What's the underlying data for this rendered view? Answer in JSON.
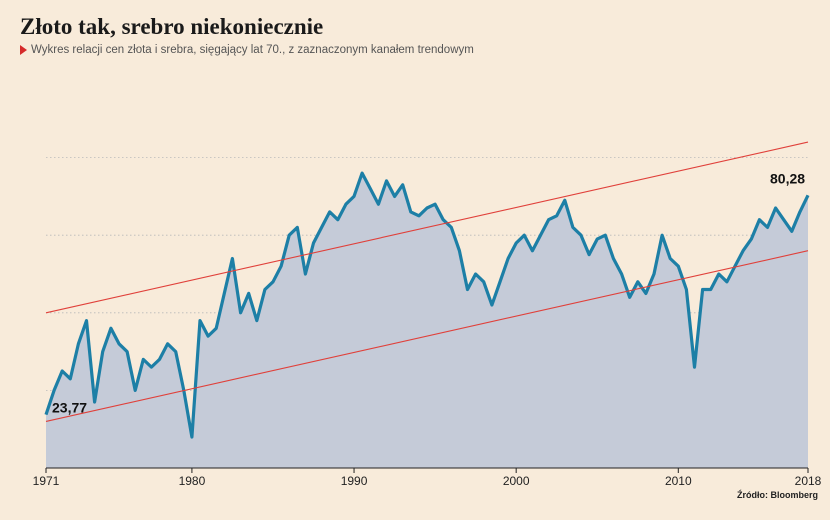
{
  "title": "Złoto tak, srebro niekoniecznie",
  "subtitle": "Wykres relacji cen złota i srebra, sięgający lat 70., z zaznaczonym kanałem trendowym",
  "source": "Źródło: Bloomberg",
  "colors": {
    "background": "#f8ebda",
    "line": "#1d7fa6",
    "area": "#c5cbd8",
    "trend": "#e0403a",
    "grid": "#b9b9b9"
  },
  "chart_data": {
    "type": "area",
    "title": "Złoto tak, srebro niekoniecznie",
    "subtitle": "Wykres relacji cen złota i srebra, sięgający lat 70., z zaznaczonym kanałem trendowym",
    "xlabel": "",
    "ylabel": "",
    "xlim": [
      1971,
      2018
    ],
    "ylim": [
      10,
      110
    ],
    "x_ticks": [
      "1971",
      "1980",
      "1990",
      "2000",
      "2010",
      "2018"
    ],
    "x_tick_values": [
      1971,
      1980,
      1990,
      2000,
      2010,
      2018
    ],
    "grid": true,
    "series": [
      {
        "x": [
          1971.0,
          1971.5,
          1972.0,
          1972.5,
          1973.0,
          1973.5,
          1974.0,
          1974.5,
          1975.0,
          1975.5,
          1976.0,
          1976.5,
          1977.0,
          1977.5,
          1978.0,
          1978.5,
          1979.0,
          1979.5,
          1980.0,
          1980.5,
          1981.0,
          1981.5,
          1982.0,
          1982.5,
          1983.0,
          1983.5,
          1984.0,
          1984.5,
          1985.0,
          1985.5,
          1986.0,
          1986.5,
          1987.0,
          1987.5,
          1988.0,
          1988.5,
          1989.0,
          1989.5,
          1990.0,
          1990.5,
          1991.0,
          1991.5,
          1992.0,
          1992.5,
          1993.0,
          1993.5,
          1994.0,
          1994.5,
          1995.0,
          1995.5,
          1996.0,
          1996.5,
          1997.0,
          1997.5,
          1998.0,
          1998.5,
          1999.0,
          1999.5,
          2000.0,
          2000.5,
          2001.0,
          2001.5,
          2002.0,
          2002.5,
          2003.0,
          2003.5,
          2004.0,
          2004.5,
          2005.0,
          2005.5,
          2006.0,
          2006.5,
          2007.0,
          2007.5,
          2008.0,
          2008.5,
          2009.0,
          2009.5,
          2010.0,
          2010.5,
          2011.0,
          2011.5,
          2012.0,
          2012.5,
          2013.0,
          2013.5,
          2014.0,
          2014.5,
          2015.0,
          2015.5,
          2016.0,
          2016.5,
          2017.0,
          2017.5,
          2018.0
        ],
        "values": [
          23.77,
          30,
          35,
          33,
          42,
          48,
          27,
          40,
          46,
          42,
          40,
          30,
          38,
          36,
          38,
          42,
          40,
          30,
          18,
          48,
          44,
          46,
          55,
          64,
          50,
          55,
          48,
          56,
          58,
          62,
          70,
          72,
          60,
          68,
          72,
          76,
          74,
          78,
          80,
          86,
          82,
          78,
          84,
          80,
          83,
          76,
          75,
          77,
          78,
          74,
          72,
          66,
          56,
          60,
          58,
          52,
          58,
          64,
          68,
          70,
          66,
          70,
          74,
          75,
          79,
          72,
          70,
          65,
          69,
          70,
          64,
          60,
          54,
          58,
          55,
          60,
          70,
          64,
          62,
          56,
          36,
          56,
          56,
          60,
          58,
          62,
          66,
          69,
          74,
          72,
          77,
          74,
          71,
          76,
          80.28
        ]
      }
    ],
    "trend_channel": {
      "upper": [
        [
          1971,
          50
        ],
        [
          2018,
          94
        ]
      ],
      "lower": [
        [
          1971,
          22
        ],
        [
          2018,
          66
        ]
      ]
    },
    "annotations": [
      {
        "text": "23,77",
        "x": 1971,
        "y": 23.77
      },
      {
        "text": "80,28",
        "x": 2018,
        "y": 80.28
      }
    ]
  }
}
